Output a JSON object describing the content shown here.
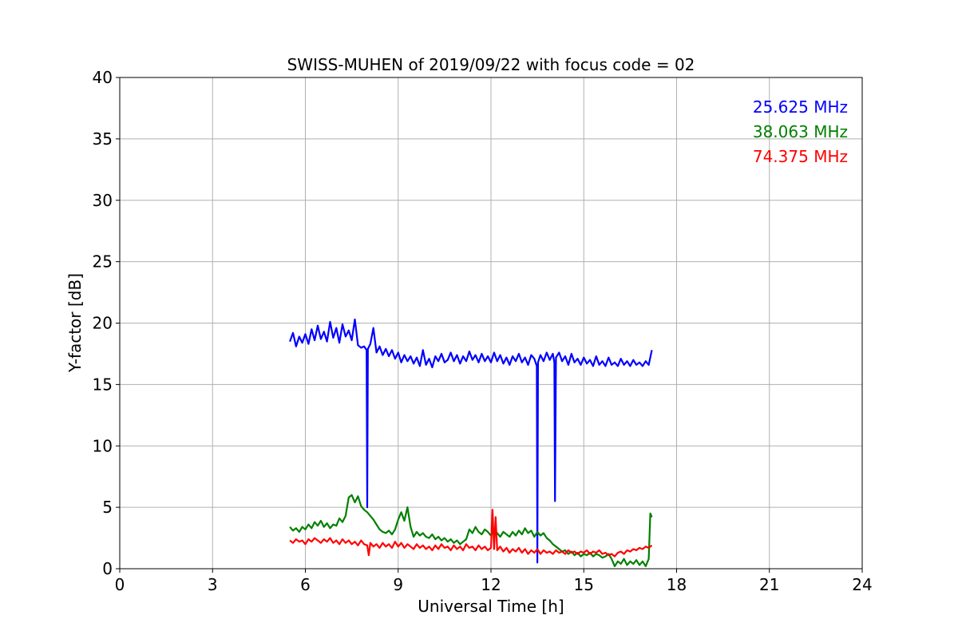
{
  "chart_data": {
    "type": "line",
    "title": "SWISS-MUHEN of 2019/09/22 with focus code = 02",
    "xlabel": "Universal Time [h]",
    "ylabel": "Y-factor [dB]",
    "xlim": [
      0,
      24
    ],
    "ylim": [
      0,
      40
    ],
    "xticks": [
      0,
      3,
      6,
      9,
      12,
      15,
      18,
      21,
      24
    ],
    "yticks": [
      0,
      5,
      10,
      15,
      20,
      25,
      30,
      35,
      40
    ],
    "grid": true,
    "legend_position": "top-right",
    "series": [
      {
        "name": "25.625 MHz",
        "color": "#0000ff",
        "x": [
          5.5,
          5.6,
          5.7,
          5.8,
          5.9,
          6.0,
          6.1,
          6.2,
          6.3,
          6.4,
          6.5,
          6.6,
          6.7,
          6.8,
          6.9,
          7.0,
          7.1,
          7.2,
          7.3,
          7.4,
          7.5,
          7.6,
          7.7,
          7.8,
          7.9,
          7.98,
          8.0,
          8.02,
          8.1,
          8.2,
          8.3,
          8.4,
          8.5,
          8.6,
          8.7,
          8.8,
          8.9,
          9.0,
          9.1,
          9.2,
          9.3,
          9.4,
          9.5,
          9.6,
          9.7,
          9.8,
          9.9,
          10.0,
          10.1,
          10.2,
          10.3,
          10.4,
          10.5,
          10.6,
          10.7,
          10.8,
          10.9,
          11.0,
          11.1,
          11.2,
          11.3,
          11.4,
          11.5,
          11.6,
          11.7,
          11.8,
          11.9,
          12.0,
          12.1,
          12.2,
          12.3,
          12.4,
          12.5,
          12.6,
          12.7,
          12.8,
          12.9,
          13.0,
          13.1,
          13.2,
          13.3,
          13.4,
          13.48,
          13.5,
          13.52,
          13.6,
          13.7,
          13.8,
          13.9,
          14.0,
          14.05,
          14.07,
          14.1,
          14.2,
          14.3,
          14.4,
          14.5,
          14.6,
          14.7,
          14.8,
          14.9,
          15.0,
          15.1,
          15.2,
          15.3,
          15.4,
          15.5,
          15.6,
          15.7,
          15.8,
          15.9,
          16.0,
          16.1,
          16.2,
          16.3,
          16.4,
          16.5,
          16.6,
          16.7,
          16.8,
          16.9,
          17.0,
          17.1,
          17.2
        ],
        "y": [
          18.5,
          19.2,
          18.1,
          18.9,
          18.4,
          19.1,
          18.3,
          19.5,
          18.6,
          19.8,
          18.7,
          19.3,
          18.5,
          20.1,
          18.8,
          19.6,
          18.4,
          19.9,
          18.9,
          19.4,
          18.6,
          20.3,
          18.2,
          18.0,
          18.1,
          17.8,
          5.0,
          17.9,
          18.3,
          19.6,
          17.6,
          18.1,
          17.4,
          17.9,
          17.3,
          17.8,
          17.1,
          17.6,
          16.8,
          17.4,
          16.9,
          17.3,
          16.7,
          17.2,
          16.5,
          17.8,
          16.6,
          17.1,
          16.4,
          17.3,
          16.9,
          17.5,
          16.8,
          17.0,
          17.6,
          16.9,
          17.4,
          16.7,
          17.3,
          16.9,
          17.7,
          17.0,
          17.4,
          16.8,
          17.5,
          16.9,
          17.3,
          16.8,
          17.6,
          16.9,
          17.4,
          16.7,
          17.2,
          16.6,
          17.3,
          16.9,
          17.5,
          16.8,
          17.2,
          16.6,
          17.4,
          17.1,
          16.5,
          0.5,
          16.8,
          17.4,
          16.9,
          17.6,
          17.0,
          17.5,
          16.8,
          5.5,
          17.2,
          17.6,
          16.9,
          17.3,
          16.6,
          17.5,
          16.8,
          17.1,
          16.6,
          17.2,
          16.7,
          17.0,
          16.5,
          17.3,
          16.6,
          16.9,
          16.5,
          17.2,
          16.6,
          16.8,
          16.5,
          17.1,
          16.6,
          16.9,
          16.5,
          17.0,
          16.6,
          16.8,
          16.5,
          16.9,
          16.6,
          17.8
        ]
      },
      {
        "name": "38.063 MHz",
        "color": "#008000",
        "x": [
          5.5,
          5.6,
          5.7,
          5.8,
          5.9,
          6.0,
          6.1,
          6.2,
          6.3,
          6.4,
          6.5,
          6.6,
          6.7,
          6.8,
          6.9,
          7.0,
          7.1,
          7.2,
          7.3,
          7.4,
          7.5,
          7.6,
          7.7,
          7.8,
          7.9,
          8.0,
          8.1,
          8.2,
          8.3,
          8.4,
          8.5,
          8.6,
          8.7,
          8.8,
          8.9,
          9.0,
          9.1,
          9.2,
          9.3,
          9.4,
          9.5,
          9.6,
          9.7,
          9.8,
          9.9,
          10.0,
          10.1,
          10.2,
          10.3,
          10.4,
          10.5,
          10.6,
          10.7,
          10.8,
          10.9,
          11.0,
          11.1,
          11.2,
          11.3,
          11.4,
          11.5,
          11.6,
          11.7,
          11.8,
          11.9,
          12.0,
          12.1,
          12.2,
          12.3,
          12.4,
          12.5,
          12.6,
          12.7,
          12.8,
          12.9,
          13.0,
          13.1,
          13.2,
          13.3,
          13.4,
          13.5,
          13.6,
          13.7,
          13.8,
          13.9,
          14.0,
          14.1,
          14.2,
          14.3,
          14.4,
          14.5,
          14.6,
          14.7,
          14.8,
          14.9,
          15.0,
          15.1,
          15.2,
          15.3,
          15.4,
          15.5,
          15.6,
          15.7,
          15.8,
          15.9,
          16.0,
          16.1,
          16.2,
          16.3,
          16.4,
          16.5,
          16.6,
          16.7,
          16.8,
          16.9,
          17.0,
          17.1,
          17.15,
          17.2
        ],
        "y": [
          3.4,
          3.1,
          3.3,
          3.0,
          3.4,
          3.2,
          3.6,
          3.3,
          3.8,
          3.5,
          3.9,
          3.4,
          3.7,
          3.3,
          3.6,
          3.5,
          4.1,
          3.8,
          4.3,
          5.8,
          6.0,
          5.4,
          5.9,
          5.1,
          4.8,
          4.6,
          4.3,
          4.0,
          3.6,
          3.2,
          3.0,
          2.9,
          3.1,
          2.8,
          3.2,
          4.0,
          4.6,
          3.9,
          5.0,
          3.4,
          2.6,
          3.0,
          2.7,
          2.9,
          2.6,
          2.5,
          2.8,
          2.4,
          2.6,
          2.3,
          2.5,
          2.2,
          2.4,
          2.1,
          2.3,
          2.0,
          2.2,
          2.4,
          3.2,
          2.9,
          3.4,
          3.0,
          2.8,
          3.2,
          3.0,
          2.7,
          3.1,
          2.9,
          2.6,
          3.0,
          2.8,
          2.6,
          3.0,
          2.7,
          3.1,
          2.8,
          3.3,
          2.9,
          3.1,
          2.6,
          3.0,
          2.7,
          2.9,
          2.5,
          2.3,
          2.0,
          1.8,
          1.6,
          1.4,
          1.5,
          1.2,
          1.4,
          1.1,
          1.3,
          1.0,
          1.2,
          1.1,
          1.3,
          1.0,
          1.2,
          1.1,
          0.9,
          1.0,
          1.2,
          0.8,
          0.2,
          0.6,
          0.4,
          0.8,
          0.3,
          0.6,
          0.4,
          0.7,
          0.3,
          0.6,
          0.2,
          0.8,
          4.5,
          4.2
        ]
      },
      {
        "name": "74.375 MHz",
        "color": "#ff0000",
        "x": [
          5.5,
          5.6,
          5.7,
          5.8,
          5.9,
          6.0,
          6.1,
          6.2,
          6.3,
          6.4,
          6.5,
          6.6,
          6.7,
          6.8,
          6.9,
          7.0,
          7.1,
          7.2,
          7.3,
          7.4,
          7.5,
          7.6,
          7.7,
          7.8,
          7.9,
          8.0,
          8.05,
          8.1,
          8.2,
          8.3,
          8.4,
          8.5,
          8.6,
          8.7,
          8.8,
          8.9,
          9.0,
          9.1,
          9.2,
          9.3,
          9.4,
          9.5,
          9.6,
          9.7,
          9.8,
          9.9,
          10.0,
          10.1,
          10.2,
          10.3,
          10.4,
          10.5,
          10.6,
          10.7,
          10.8,
          10.9,
          11.0,
          11.1,
          11.2,
          11.3,
          11.4,
          11.5,
          11.6,
          11.7,
          11.8,
          11.9,
          12.0,
          12.05,
          12.1,
          12.15,
          12.2,
          12.3,
          12.4,
          12.5,
          12.6,
          12.7,
          12.8,
          12.9,
          13.0,
          13.1,
          13.2,
          13.3,
          13.4,
          13.5,
          13.6,
          13.7,
          13.8,
          13.9,
          14.0,
          14.1,
          14.2,
          14.3,
          14.4,
          14.5,
          14.6,
          14.7,
          14.8,
          14.9,
          15.0,
          15.1,
          15.2,
          15.3,
          15.4,
          15.5,
          15.6,
          15.7,
          15.8,
          15.9,
          16.0,
          16.1,
          16.2,
          16.3,
          16.4,
          16.5,
          16.6,
          16.7,
          16.8,
          16.9,
          17.0,
          17.1,
          17.2
        ],
        "y": [
          2.3,
          2.1,
          2.4,
          2.2,
          2.3,
          2.0,
          2.4,
          2.2,
          2.5,
          2.3,
          2.1,
          2.4,
          2.2,
          2.5,
          2.1,
          2.3,
          2.0,
          2.4,
          2.1,
          2.3,
          2.0,
          2.2,
          1.9,
          2.3,
          2.0,
          1.9,
          1.1,
          2.1,
          1.8,
          2.0,
          1.7,
          2.1,
          1.8,
          2.0,
          1.7,
          2.2,
          1.8,
          2.1,
          1.7,
          2.0,
          1.8,
          1.6,
          2.0,
          1.7,
          1.9,
          1.6,
          1.8,
          1.5,
          1.9,
          1.6,
          2.0,
          1.7,
          1.8,
          1.5,
          1.9,
          1.6,
          1.8,
          1.5,
          2.0,
          1.7,
          1.8,
          1.5,
          1.9,
          1.6,
          1.8,
          1.5,
          1.7,
          4.8,
          1.6,
          4.2,
          1.5,
          1.8,
          1.4,
          1.7,
          1.3,
          1.6,
          1.4,
          1.7,
          1.3,
          1.6,
          1.2,
          1.5,
          1.3,
          1.6,
          1.2,
          1.5,
          1.3,
          1.4,
          1.2,
          1.5,
          1.3,
          1.4,
          1.2,
          1.5,
          1.3,
          1.4,
          1.2,
          1.4,
          1.3,
          1.5,
          1.2,
          1.4,
          1.3,
          1.5,
          1.2,
          1.3,
          1.1,
          1.2,
          1.0,
          1.3,
          1.4,
          1.2,
          1.5,
          1.4,
          1.6,
          1.5,
          1.7,
          1.6,
          1.8,
          1.7,
          1.9
        ]
      }
    ]
  }
}
